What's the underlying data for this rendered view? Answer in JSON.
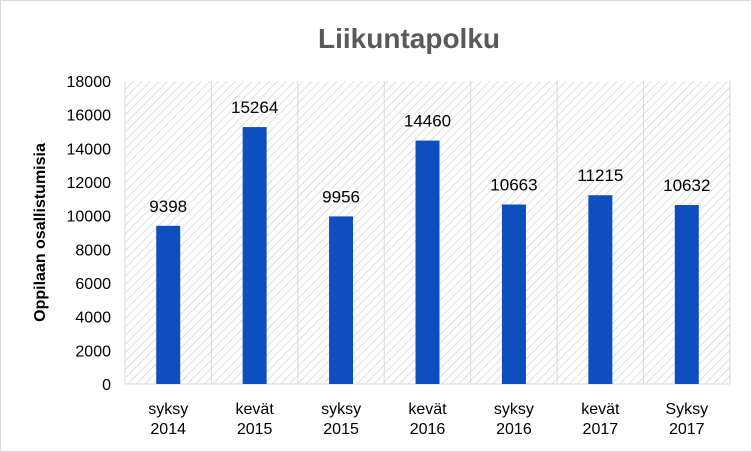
{
  "chart_data": {
    "type": "bar",
    "title": "Liikuntapolku",
    "ylabel": "Oppilaan osallistumisia",
    "xlabel": "",
    "categories": [
      [
        "syksy",
        "2014"
      ],
      [
        "kevät",
        "2015"
      ],
      [
        "syksy",
        "2015"
      ],
      [
        "kevät",
        "2016"
      ],
      [
        "syksy",
        "2016"
      ],
      [
        "kevät",
        "2017"
      ],
      [
        "Syksy",
        "2017"
      ]
    ],
    "values": [
      9398,
      15264,
      9956,
      14460,
      10663,
      11215,
      10632
    ],
    "data_labels": [
      "9398",
      "15264",
      "9956",
      "14460",
      "10663",
      "11215",
      "10632"
    ],
    "ylim": [
      0,
      18000
    ],
    "yticks": [
      "0",
      "2000",
      "4000",
      "6000",
      "8000",
      "10000",
      "12000",
      "14000",
      "16000",
      "18000"
    ],
    "grid": "vertical category separators, hatched plot background",
    "legend": "none",
    "colors": {
      "bar": "#0e4fbf",
      "title": "#595959",
      "grid": "#d9d9d9"
    }
  }
}
